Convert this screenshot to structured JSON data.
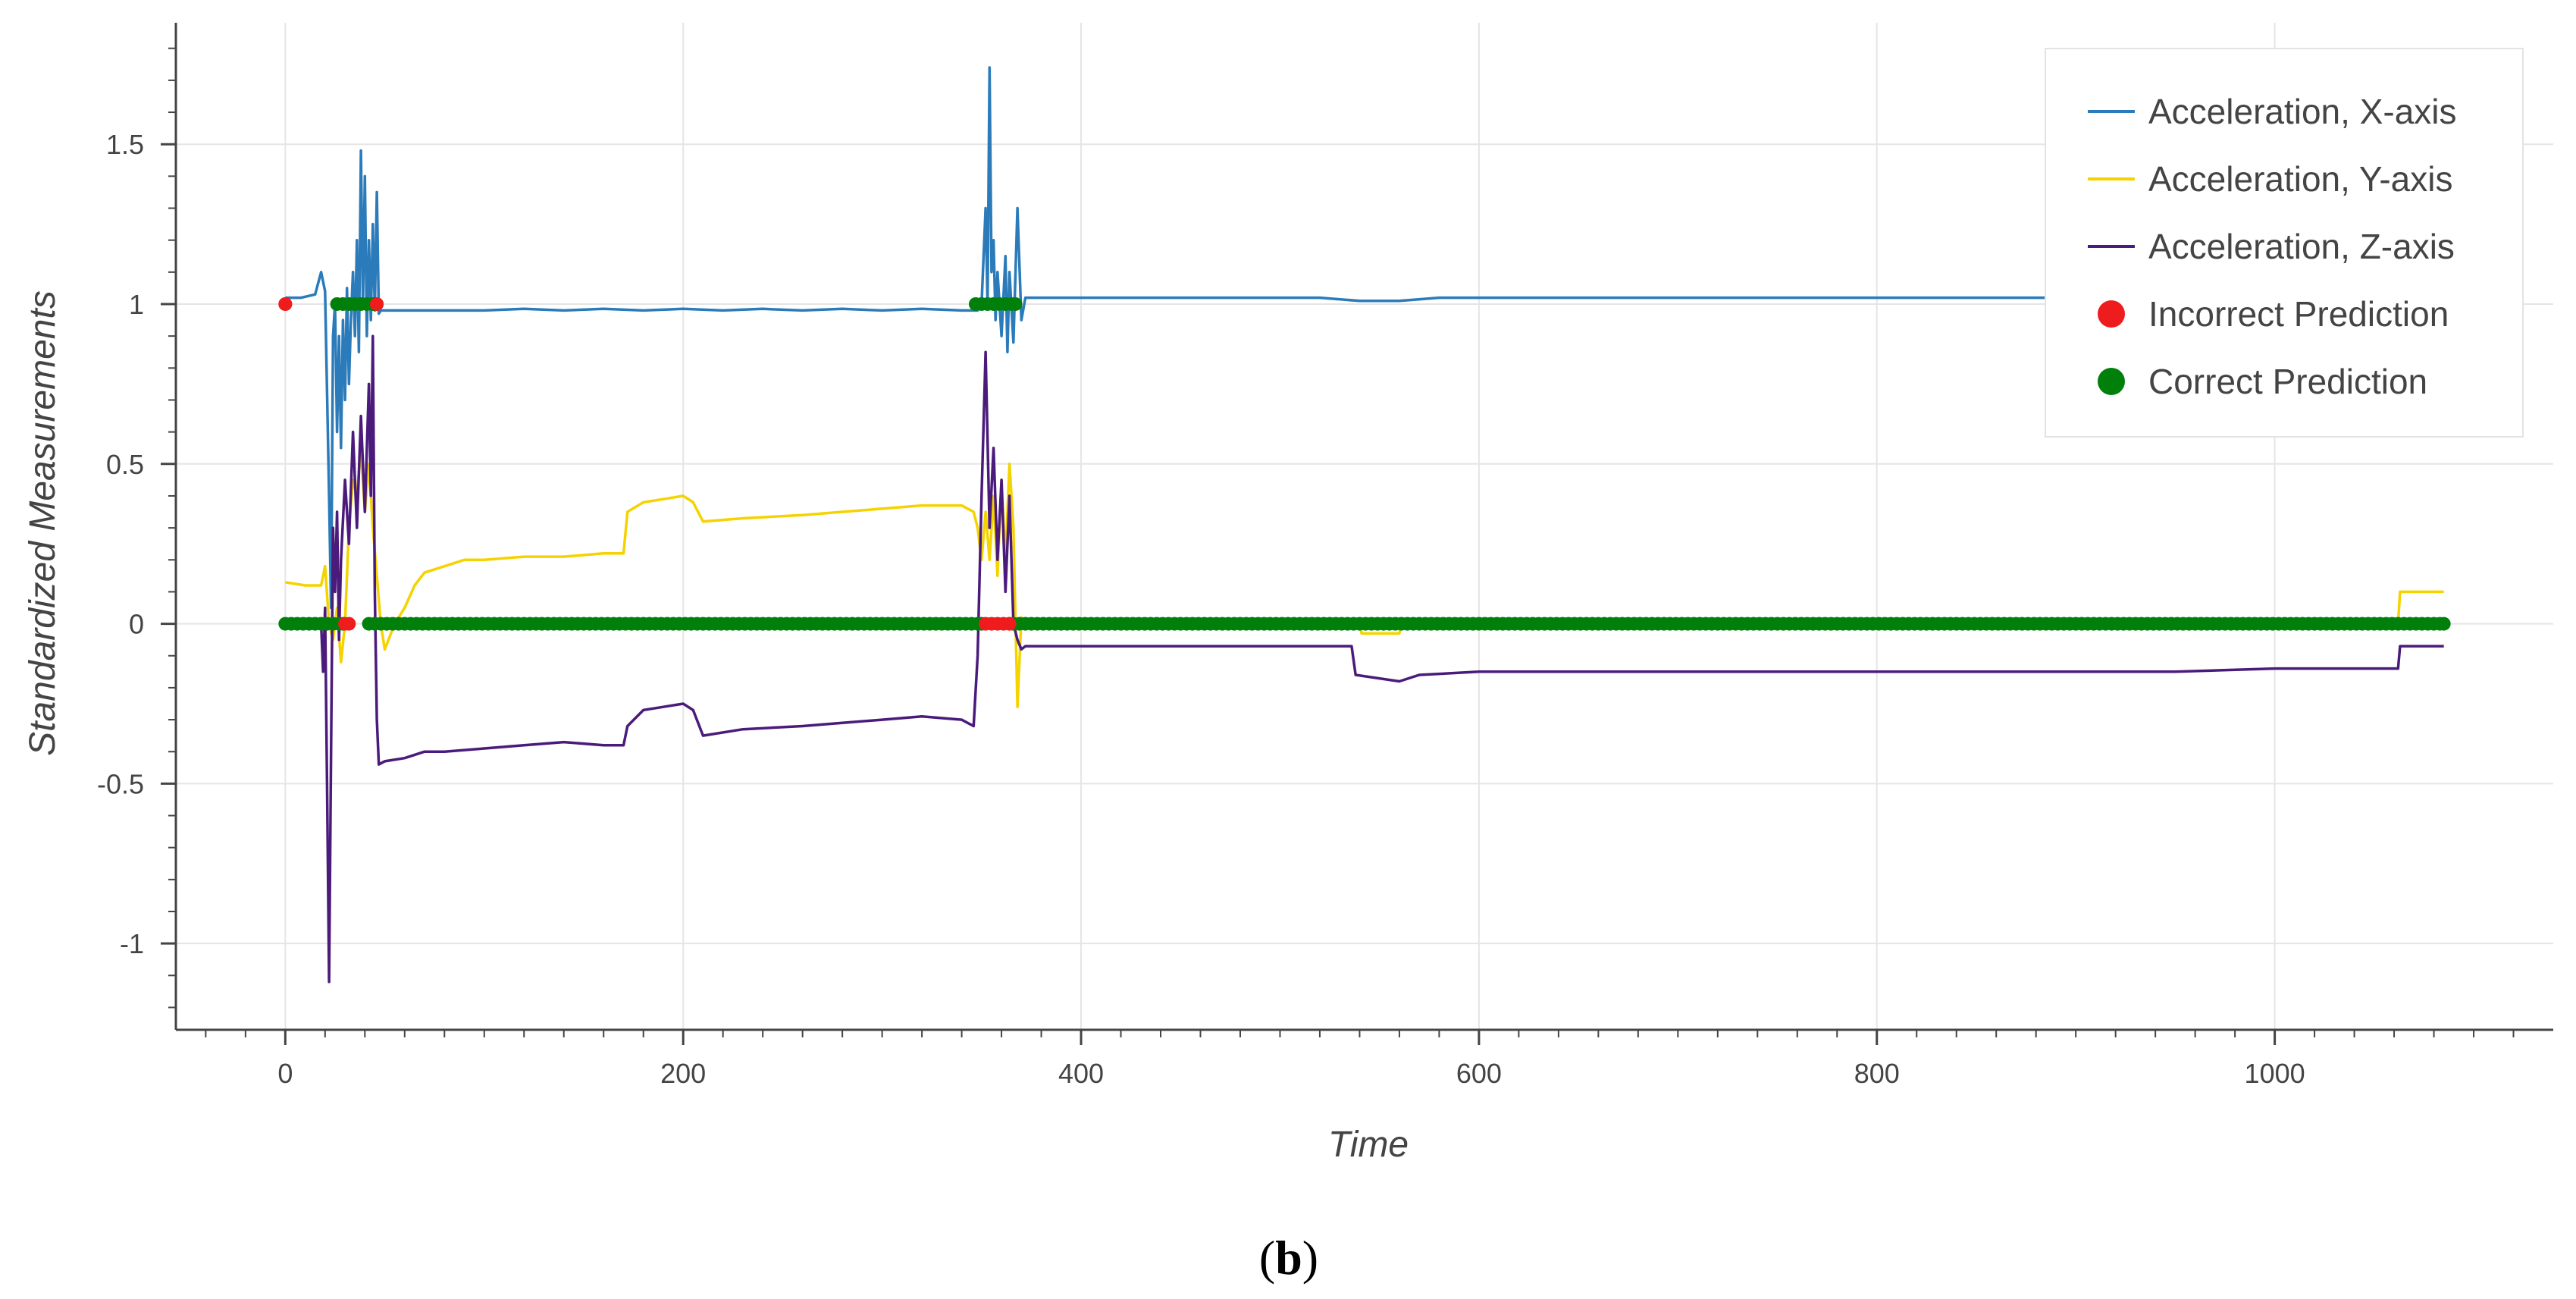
{
  "chart_data": {
    "type": "line",
    "xlabel": "Time",
    "ylabel": "Standardized Measurements",
    "panel_label": "(b)",
    "panel_open": "(",
    "panel_letter": "b",
    "panel_close": ")",
    "xlim": [
      -55,
      1140
    ],
    "ylim": [
      -1.27,
      1.88
    ],
    "grid": true,
    "legend_position": "top-right",
    "x_ticks": [
      0,
      200,
      400,
      600,
      800,
      1000
    ],
    "x_tick_labels": [
      "0",
      "200",
      "400",
      "600",
      "800",
      "1000"
    ],
    "y_ticks": [
      -1,
      -0.5,
      0,
      0.5,
      1,
      1.5
    ],
    "y_tick_labels": [
      "-1",
      "-0.5",
      "0",
      "0.5",
      "1",
      "1.5"
    ],
    "series": [
      {
        "name": "Acceleration, X-axis",
        "kind": "line",
        "color": "#2b7bba",
        "points": [
          [
            0,
            1.02
          ],
          [
            8,
            1.02
          ],
          [
            15,
            1.03
          ],
          [
            18,
            1.1
          ],
          [
            20,
            1.04
          ],
          [
            22,
            0.4
          ],
          [
            23,
            0.05
          ],
          [
            24,
            0.9
          ],
          [
            25,
            1.0
          ],
          [
            26,
            0.6
          ],
          [
            27,
            0.9
          ],
          [
            28,
            0.55
          ],
          [
            29,
            0.95
          ],
          [
            30,
            0.7
          ],
          [
            31,
            1.05
          ],
          [
            32,
            0.75
          ],
          [
            33,
            0.95
          ],
          [
            34,
            1.1
          ],
          [
            35,
            0.9
          ],
          [
            36,
            1.2
          ],
          [
            37,
            0.85
          ],
          [
            38,
            1.48
          ],
          [
            39,
            1.0
          ],
          [
            40,
            1.4
          ],
          [
            41,
            0.9
          ],
          [
            42,
            1.2
          ],
          [
            43,
            0.95
          ],
          [
            44,
            1.25
          ],
          [
            45,
            0.98
          ],
          [
            46,
            1.35
          ],
          [
            47,
            0.97
          ],
          [
            48,
            0.98
          ],
          [
            60,
            0.98
          ],
          [
            80,
            0.98
          ],
          [
            100,
            0.98
          ],
          [
            120,
            0.985
          ],
          [
            140,
            0.98
          ],
          [
            160,
            0.985
          ],
          [
            180,
            0.98
          ],
          [
            200,
            0.985
          ],
          [
            220,
            0.98
          ],
          [
            240,
            0.985
          ],
          [
            260,
            0.98
          ],
          [
            280,
            0.985
          ],
          [
            300,
            0.98
          ],
          [
            320,
            0.985
          ],
          [
            340,
            0.98
          ],
          [
            348,
            0.98
          ],
          [
            350,
            1.0
          ],
          [
            352,
            1.3
          ],
          [
            353,
            1.0
          ],
          [
            354,
            1.74
          ],
          [
            355,
            1.1
          ],
          [
            356,
            1.2
          ],
          [
            357,
            0.95
          ],
          [
            358,
            1.1
          ],
          [
            360,
            0.9
          ],
          [
            362,
            1.15
          ],
          [
            363,
            0.85
          ],
          [
            364,
            1.1
          ],
          [
            366,
            0.88
          ],
          [
            368,
            1.3
          ],
          [
            370,
            0.95
          ],
          [
            372,
            1.02
          ],
          [
            380,
            1.02
          ],
          [
            400,
            1.02
          ],
          [
            450,
            1.02
          ],
          [
            500,
            1.02
          ],
          [
            520,
            1.02
          ],
          [
            540,
            1.01
          ],
          [
            560,
            1.01
          ],
          [
            580,
            1.02
          ],
          [
            600,
            1.02
          ],
          [
            650,
            1.02
          ],
          [
            700,
            1.02
          ],
          [
            750,
            1.02
          ],
          [
            800,
            1.02
          ],
          [
            850,
            1.02
          ],
          [
            885,
            1.02
          ]
        ]
      },
      {
        "name": "Acceleration, Y-axis",
        "kind": "line",
        "color": "#f5d300",
        "points": [
          [
            0,
            0.13
          ],
          [
            10,
            0.12
          ],
          [
            15,
            0.12
          ],
          [
            18,
            0.12
          ],
          [
            20,
            0.18
          ],
          [
            22,
            0.0
          ],
          [
            24,
            -0.05
          ],
          [
            26,
            0.05
          ],
          [
            28,
            -0.12
          ],
          [
            30,
            0.0
          ],
          [
            32,
            0.3
          ],
          [
            34,
            0.45
          ],
          [
            36,
            0.4
          ],
          [
            38,
            0.55
          ],
          [
            40,
            0.35
          ],
          [
            42,
            0.5
          ],
          [
            44,
            0.3
          ],
          [
            46,
            0.15
          ],
          [
            48,
            0.0
          ],
          [
            50,
            -0.08
          ],
          [
            55,
            0.0
          ],
          [
            60,
            0.05
          ],
          [
            65,
            0.12
          ],
          [
            70,
            0.16
          ],
          [
            80,
            0.18
          ],
          [
            90,
            0.2
          ],
          [
            100,
            0.2
          ],
          [
            120,
            0.21
          ],
          [
            140,
            0.21
          ],
          [
            160,
            0.22
          ],
          [
            170,
            0.22
          ],
          [
            172,
            0.35
          ],
          [
            180,
            0.38
          ],
          [
            190,
            0.39
          ],
          [
            200,
            0.4
          ],
          [
            205,
            0.38
          ],
          [
            210,
            0.32
          ],
          [
            230,
            0.33
          ],
          [
            260,
            0.34
          ],
          [
            280,
            0.35
          ],
          [
            300,
            0.36
          ],
          [
            320,
            0.37
          ],
          [
            340,
            0.37
          ],
          [
            346,
            0.35
          ],
          [
            348,
            0.3
          ],
          [
            350,
            0.2
          ],
          [
            352,
            0.35
          ],
          [
            354,
            0.2
          ],
          [
            356,
            0.4
          ],
          [
            358,
            0.15
          ],
          [
            360,
            0.45
          ],
          [
            362,
            0.2
          ],
          [
            364,
            0.5
          ],
          [
            366,
            0.3
          ],
          [
            368,
            -0.26
          ],
          [
            370,
            0.02
          ],
          [
            372,
            0.0
          ],
          [
            400,
            0.0
          ],
          [
            500,
            0.0
          ],
          [
            540,
            0.0
          ],
          [
            541,
            -0.03
          ],
          [
            560,
            -0.03
          ],
          [
            561,
            0.0
          ],
          [
            600,
            0.0
          ],
          [
            700,
            0.0
          ],
          [
            800,
            0.0
          ],
          [
            900,
            0.0
          ],
          [
            1000,
            0.0
          ],
          [
            1062,
            0.0
          ],
          [
            1063,
            0.1
          ],
          [
            1085,
            0.1
          ]
        ]
      },
      {
        "name": "Acceleration, Z-axis",
        "kind": "line",
        "color": "#4b1b7b",
        "points": [
          [
            0,
            0.0
          ],
          [
            10,
            0.0
          ],
          [
            15,
            0.0
          ],
          [
            18,
            0.0
          ],
          [
            19,
            -0.15
          ],
          [
            20,
            0.05
          ],
          [
            21,
            -0.5
          ],
          [
            22,
            -1.12
          ],
          [
            23,
            -0.4
          ],
          [
            24,
            0.3
          ],
          [
            25,
            0.1
          ],
          [
            26,
            0.35
          ],
          [
            27,
            -0.05
          ],
          [
            28,
            0.2
          ],
          [
            30,
            0.45
          ],
          [
            32,
            0.25
          ],
          [
            34,
            0.6
          ],
          [
            36,
            0.3
          ],
          [
            38,
            0.65
          ],
          [
            40,
            0.35
          ],
          [
            42,
            0.75
          ],
          [
            43,
            0.4
          ],
          [
            44,
            0.9
          ],
          [
            45,
            0.1
          ],
          [
            46,
            -0.3
          ],
          [
            47,
            -0.44
          ],
          [
            50,
            -0.43
          ],
          [
            60,
            -0.42
          ],
          [
            70,
            -0.4
          ],
          [
            80,
            -0.4
          ],
          [
            100,
            -0.39
          ],
          [
            120,
            -0.38
          ],
          [
            140,
            -0.37
          ],
          [
            160,
            -0.38
          ],
          [
            170,
            -0.38
          ],
          [
            172,
            -0.32
          ],
          [
            180,
            -0.27
          ],
          [
            190,
            -0.26
          ],
          [
            200,
            -0.25
          ],
          [
            205,
            -0.27
          ],
          [
            210,
            -0.35
          ],
          [
            230,
            -0.33
          ],
          [
            260,
            -0.32
          ],
          [
            280,
            -0.31
          ],
          [
            300,
            -0.3
          ],
          [
            320,
            -0.29
          ],
          [
            340,
            -0.3
          ],
          [
            346,
            -0.32
          ],
          [
            348,
            -0.1
          ],
          [
            350,
            0.4
          ],
          [
            352,
            0.85
          ],
          [
            354,
            0.3
          ],
          [
            356,
            0.55
          ],
          [
            358,
            0.2
          ],
          [
            360,
            0.45
          ],
          [
            362,
            0.1
          ],
          [
            364,
            0.4
          ],
          [
            366,
            0.0
          ],
          [
            368,
            -0.05
          ],
          [
            370,
            -0.08
          ],
          [
            372,
            -0.07
          ],
          [
            400,
            -0.07
          ],
          [
            450,
            -0.07
          ],
          [
            500,
            -0.07
          ],
          [
            536,
            -0.07
          ],
          [
            538,
            -0.16
          ],
          [
            560,
            -0.18
          ],
          [
            570,
            -0.16
          ],
          [
            600,
            -0.15
          ],
          [
            650,
            -0.15
          ],
          [
            700,
            -0.15
          ],
          [
            750,
            -0.15
          ],
          [
            800,
            -0.15
          ],
          [
            850,
            -0.15
          ],
          [
            900,
            -0.15
          ],
          [
            950,
            -0.15
          ],
          [
            1000,
            -0.14
          ],
          [
            1050,
            -0.14
          ],
          [
            1062,
            -0.14
          ],
          [
            1063,
            -0.07
          ],
          [
            1085,
            -0.07
          ]
        ]
      },
      {
        "name": "Incorrect Prediction",
        "kind": "points",
        "color": "#ee1c1c",
        "runs": [
          {
            "y": 1,
            "x_start": 0,
            "x_end": 0
          },
          {
            "y": 1,
            "x_start": 46,
            "x_end": 46
          },
          {
            "y": 0,
            "x_start": 30,
            "x_end": 32
          },
          {
            "y": 0,
            "x_start": 352,
            "x_end": 364
          }
        ]
      },
      {
        "name": "Correct Prediction",
        "kind": "points",
        "color": "#00800a",
        "runs": [
          {
            "y": 1,
            "x_start": 26,
            "x_end": 45
          },
          {
            "y": 1,
            "x_start": 347,
            "x_end": 367
          },
          {
            "y": 0,
            "x_start": 0,
            "x_end": 29
          },
          {
            "y": 0,
            "x_start": 42,
            "x_end": 350
          },
          {
            "y": 0,
            "x_start": 366,
            "x_end": 1085
          }
        ]
      }
    ]
  }
}
